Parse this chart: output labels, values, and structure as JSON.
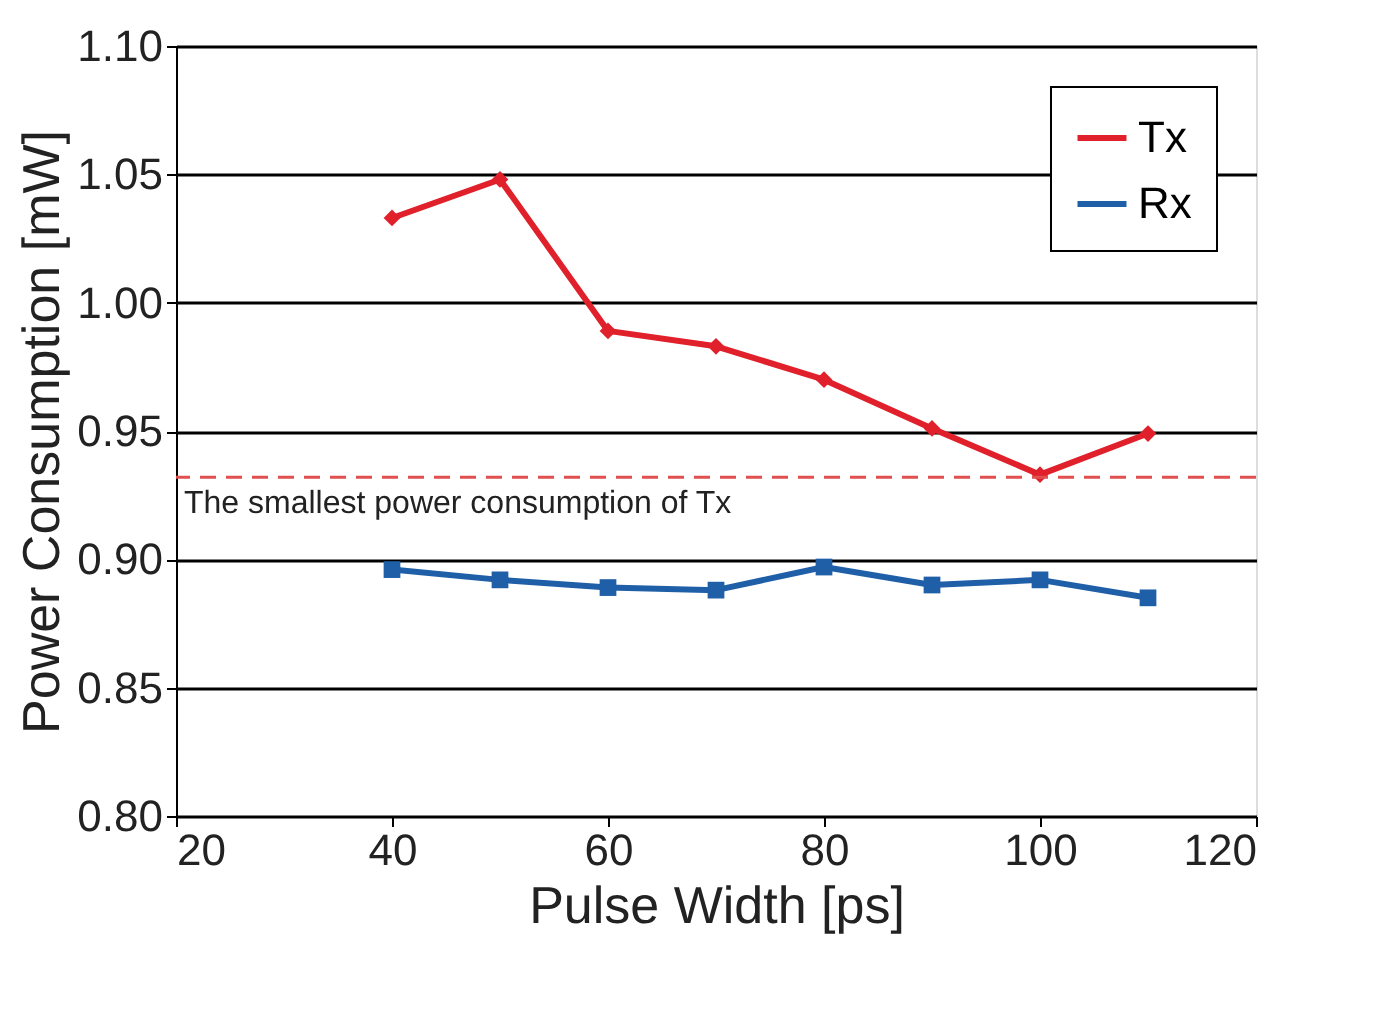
{
  "chart_data": {
    "type": "line",
    "xlabel": "Pulse Width [ps]",
    "ylabel": "Power Consumption [mW]",
    "x": [
      40,
      50,
      60,
      70,
      80,
      90,
      100,
      110
    ],
    "series": [
      {
        "name": "Tx",
        "color": "#e0202a",
        "marker": "diamond",
        "values": [
          1.033,
          1.048,
          0.989,
          0.983,
          0.97,
          0.951,
          0.933,
          0.949
        ]
      },
      {
        "name": "Rx",
        "color": "#1f5fa8",
        "marker": "square",
        "values": [
          0.896,
          0.892,
          0.889,
          0.888,
          0.897,
          0.89,
          0.892,
          0.885
        ]
      }
    ],
    "xlim": [
      20,
      120
    ],
    "xticks": [
      20,
      40,
      60,
      80,
      100,
      120
    ],
    "ylim": [
      0.8,
      1.1
    ],
    "yticks": [
      {
        "value": 0.8,
        "label": "0.80"
      },
      {
        "value": 0.85,
        "label": "0.85"
      },
      {
        "value": 0.9,
        "label": "0.90"
      },
      {
        "value": 0.95,
        "label": "0.95"
      },
      {
        "value": 1.0,
        "label": "1.00"
      },
      {
        "value": 1.05,
        "label": "1.05"
      },
      {
        "value": 1.1,
        "label": "1.10"
      }
    ],
    "ref_lines": [
      {
        "axis": "y",
        "value": 0.932,
        "label": "The smallest power consumption of Tx",
        "color": "#e05050",
        "line_style": "dashed"
      }
    ],
    "grid": "y",
    "legend": "top right",
    "line_style": "solid"
  }
}
